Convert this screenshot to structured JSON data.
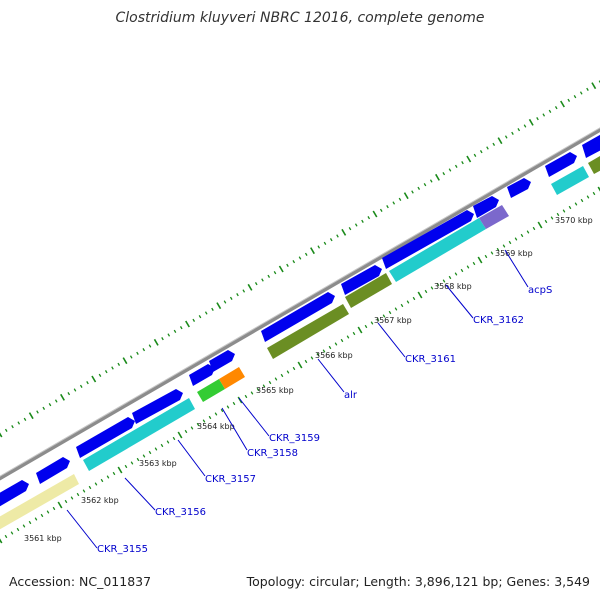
{
  "header": {
    "title": "Clostridium kluyveri NBRC 12016, complete genome"
  },
  "footer": {
    "accession": "Accession: NC_011837",
    "summary": "Topology: circular; Length: 3,896,121 bp; Genes: 3,549"
  },
  "colors": {
    "backbone": "#8c8c8c",
    "cds_forward": "#0000ee",
    "tick": "#1a8a1a",
    "label_line": "#0000cc",
    "label_text": "#0000cc"
  },
  "scale_labels": [
    "3561 kbp",
    "3562 kbp",
    "3563 kbp",
    "3564 kbp",
    "3565 kbp",
    "3566 kbp",
    "3567 kbp",
    "3568 kbp",
    "3569 kbp",
    "3570 kbp"
  ],
  "gene_labels": [
    "CKR_3155",
    "CKR_3156",
    "CKR_3157",
    "CKR_3158",
    "CKR_3159",
    "alr",
    "CKR_3161",
    "CKR_3162",
    "acpS"
  ],
  "feature_colors": [
    "#eeeaa6",
    "#22cccc",
    "#33cc33",
    "#ff8800",
    "#6b8e23",
    "#7b68cc"
  ]
}
